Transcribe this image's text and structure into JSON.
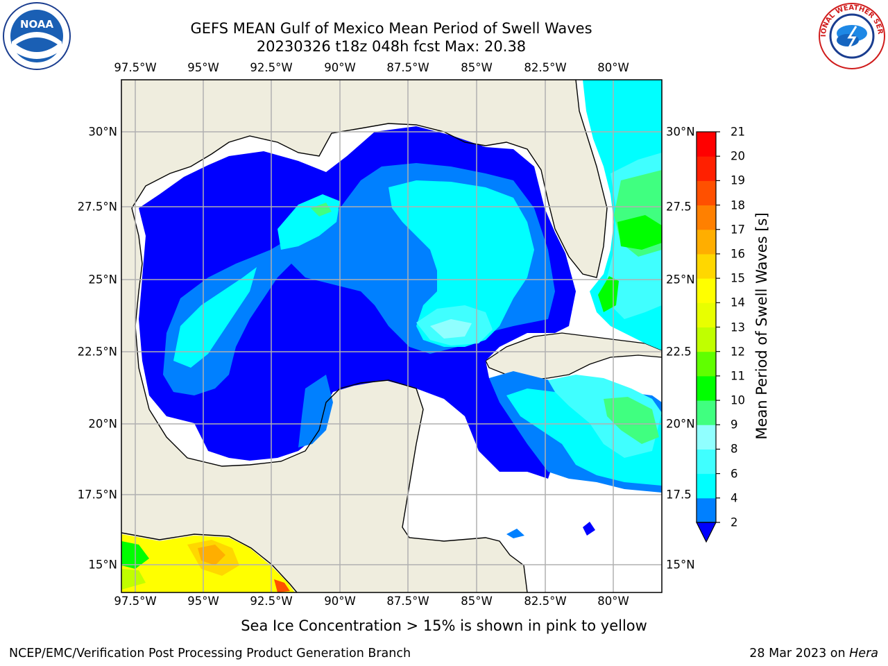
{
  "title": {
    "line1": "GEFS MEAN Gulf of Mexico Mean Period of Swell Waves",
    "line2": "20230326 t18z 048h fcst   Max: 20.38"
  },
  "logos": {
    "left": {
      "icon": "noaa-logo",
      "text": "NOAA"
    },
    "right": {
      "icon": "nws-logo",
      "text": "NATIONAL WEATHER SERVICE"
    }
  },
  "map": {
    "projection": "lat-lon",
    "lon_ticks": [
      "97.5°W",
      "95°W",
      "92.5°W",
      "90°W",
      "87.5°W",
      "85°W",
      "82.5°W",
      "80°W"
    ],
    "lat_ticks_left": [
      "30°N",
      "27.5°N",
      "25°N",
      "22.5°N",
      "20°N",
      "17.5°N",
      "15°N"
    ],
    "lat_ticks_right": [
      "30°N",
      "27.5",
      "25°N",
      "22.5",
      "20°N",
      "17.5",
      "15°N"
    ],
    "grid": true,
    "colors": {
      "land": "#efedde",
      "ocean_nodata": "#ffffff",
      "coast": "#000000",
      "grid": "#b0b0b0"
    }
  },
  "colorbar": {
    "label": "Mean Period of Swell Waves [s]",
    "ticks": [
      "2",
      "4",
      "6",
      "8",
      "9",
      "10",
      "11",
      "12",
      "13",
      "14",
      "15",
      "16",
      "17",
      "18",
      "19",
      "20",
      "21"
    ],
    "colors": [
      "#0000ff",
      "#0080ff",
      "#00ffff",
      "#40ffff",
      "#90ffff",
      "#40ff80",
      "#00ff00",
      "#60ff00",
      "#c0ff00",
      "#e8ff00",
      "#ffff00",
      "#ffd700",
      "#ffae00",
      "#ff8000",
      "#ff5000",
      "#ff2000",
      "#ff0000"
    ],
    "extend": "min"
  },
  "footnote": "Sea Ice Concentration > 15% is shown in pink to yellow",
  "credit": {
    "left": "NCEP/EMC/Verification Post Processing Product Generation Branch",
    "right_prefix": "28 Mar 2023 on ",
    "right_host": "Hera"
  }
}
